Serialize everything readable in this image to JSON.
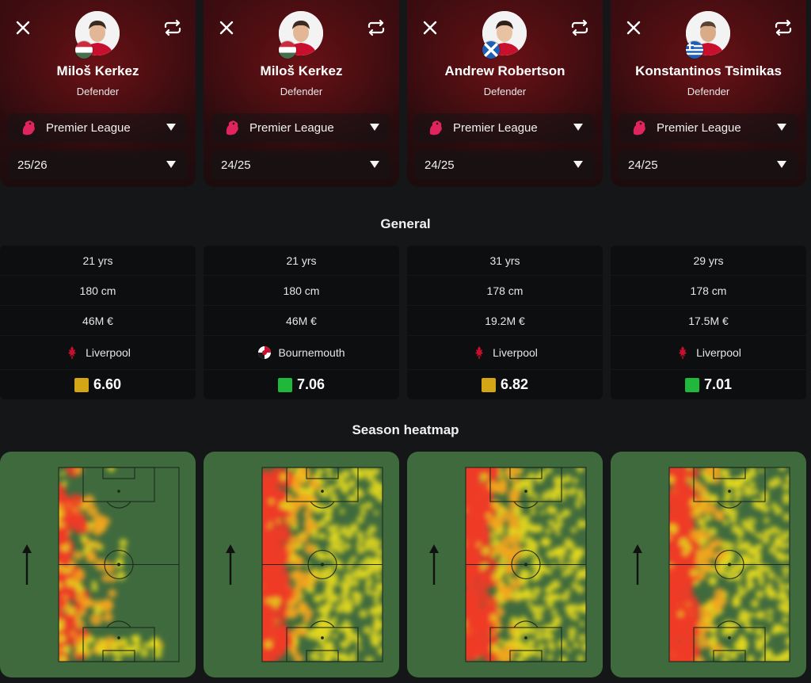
{
  "players": [
    {
      "name": "Miloš Kerkez",
      "position": "Defender",
      "league": "Premier League",
      "season": "25/26",
      "flag": "hungary-flag",
      "close_icon": "close-icon",
      "swap_icon": "swap-icon"
    },
    {
      "name": "Miloš Kerkez",
      "position": "Defender",
      "league": "Premier League",
      "season": "24/25",
      "flag": "hungary-flag",
      "close_icon": "close-icon",
      "swap_icon": "swap-icon"
    },
    {
      "name": "Andrew Robertson",
      "position": "Defender",
      "league": "Premier League",
      "season": "24/25",
      "flag": "scotland-flag",
      "close_icon": "close-icon",
      "swap_icon": "swap-icon"
    },
    {
      "name": "Konstantinos Tsimikas",
      "position": "Defender",
      "league": "Premier League",
      "season": "24/25",
      "flag": "greece-flag",
      "close_icon": "close-icon",
      "swap_icon": "swap-icon"
    }
  ],
  "general": {
    "title": "General",
    "columns": [
      {
        "age": "21 yrs",
        "height": "180 cm",
        "value": "46M €",
        "club": "Liverpool",
        "club_icon": "liverpool-crest-icon",
        "rating": "6.60",
        "rating_color": "#d4a514"
      },
      {
        "age": "21 yrs",
        "height": "180 cm",
        "value": "46M €",
        "club": "Bournemouth",
        "club_icon": "bournemouth-crest-icon",
        "rating": "7.06",
        "rating_color": "#1fb83a"
      },
      {
        "age": "31 yrs",
        "height": "178 cm",
        "value": "19.2M €",
        "club": "Liverpool",
        "club_icon": "liverpool-crest-icon",
        "rating": "6.82",
        "rating_color": "#d4a514"
      },
      {
        "age": "29 yrs",
        "height": "178 cm",
        "value": "17.5M €",
        "club": "Liverpool",
        "club_icon": "liverpool-crest-icon",
        "rating": "7.01",
        "rating_color": "#1fb83a"
      }
    ]
  },
  "heatmap": {
    "title": "Season heatmap",
    "direction_icon": "attack-direction-arrow-icon",
    "pitch_color": "#3f6a3e"
  },
  "colors": {
    "card_accent": "#3a0c10",
    "premier_league": "#e0245e"
  }
}
